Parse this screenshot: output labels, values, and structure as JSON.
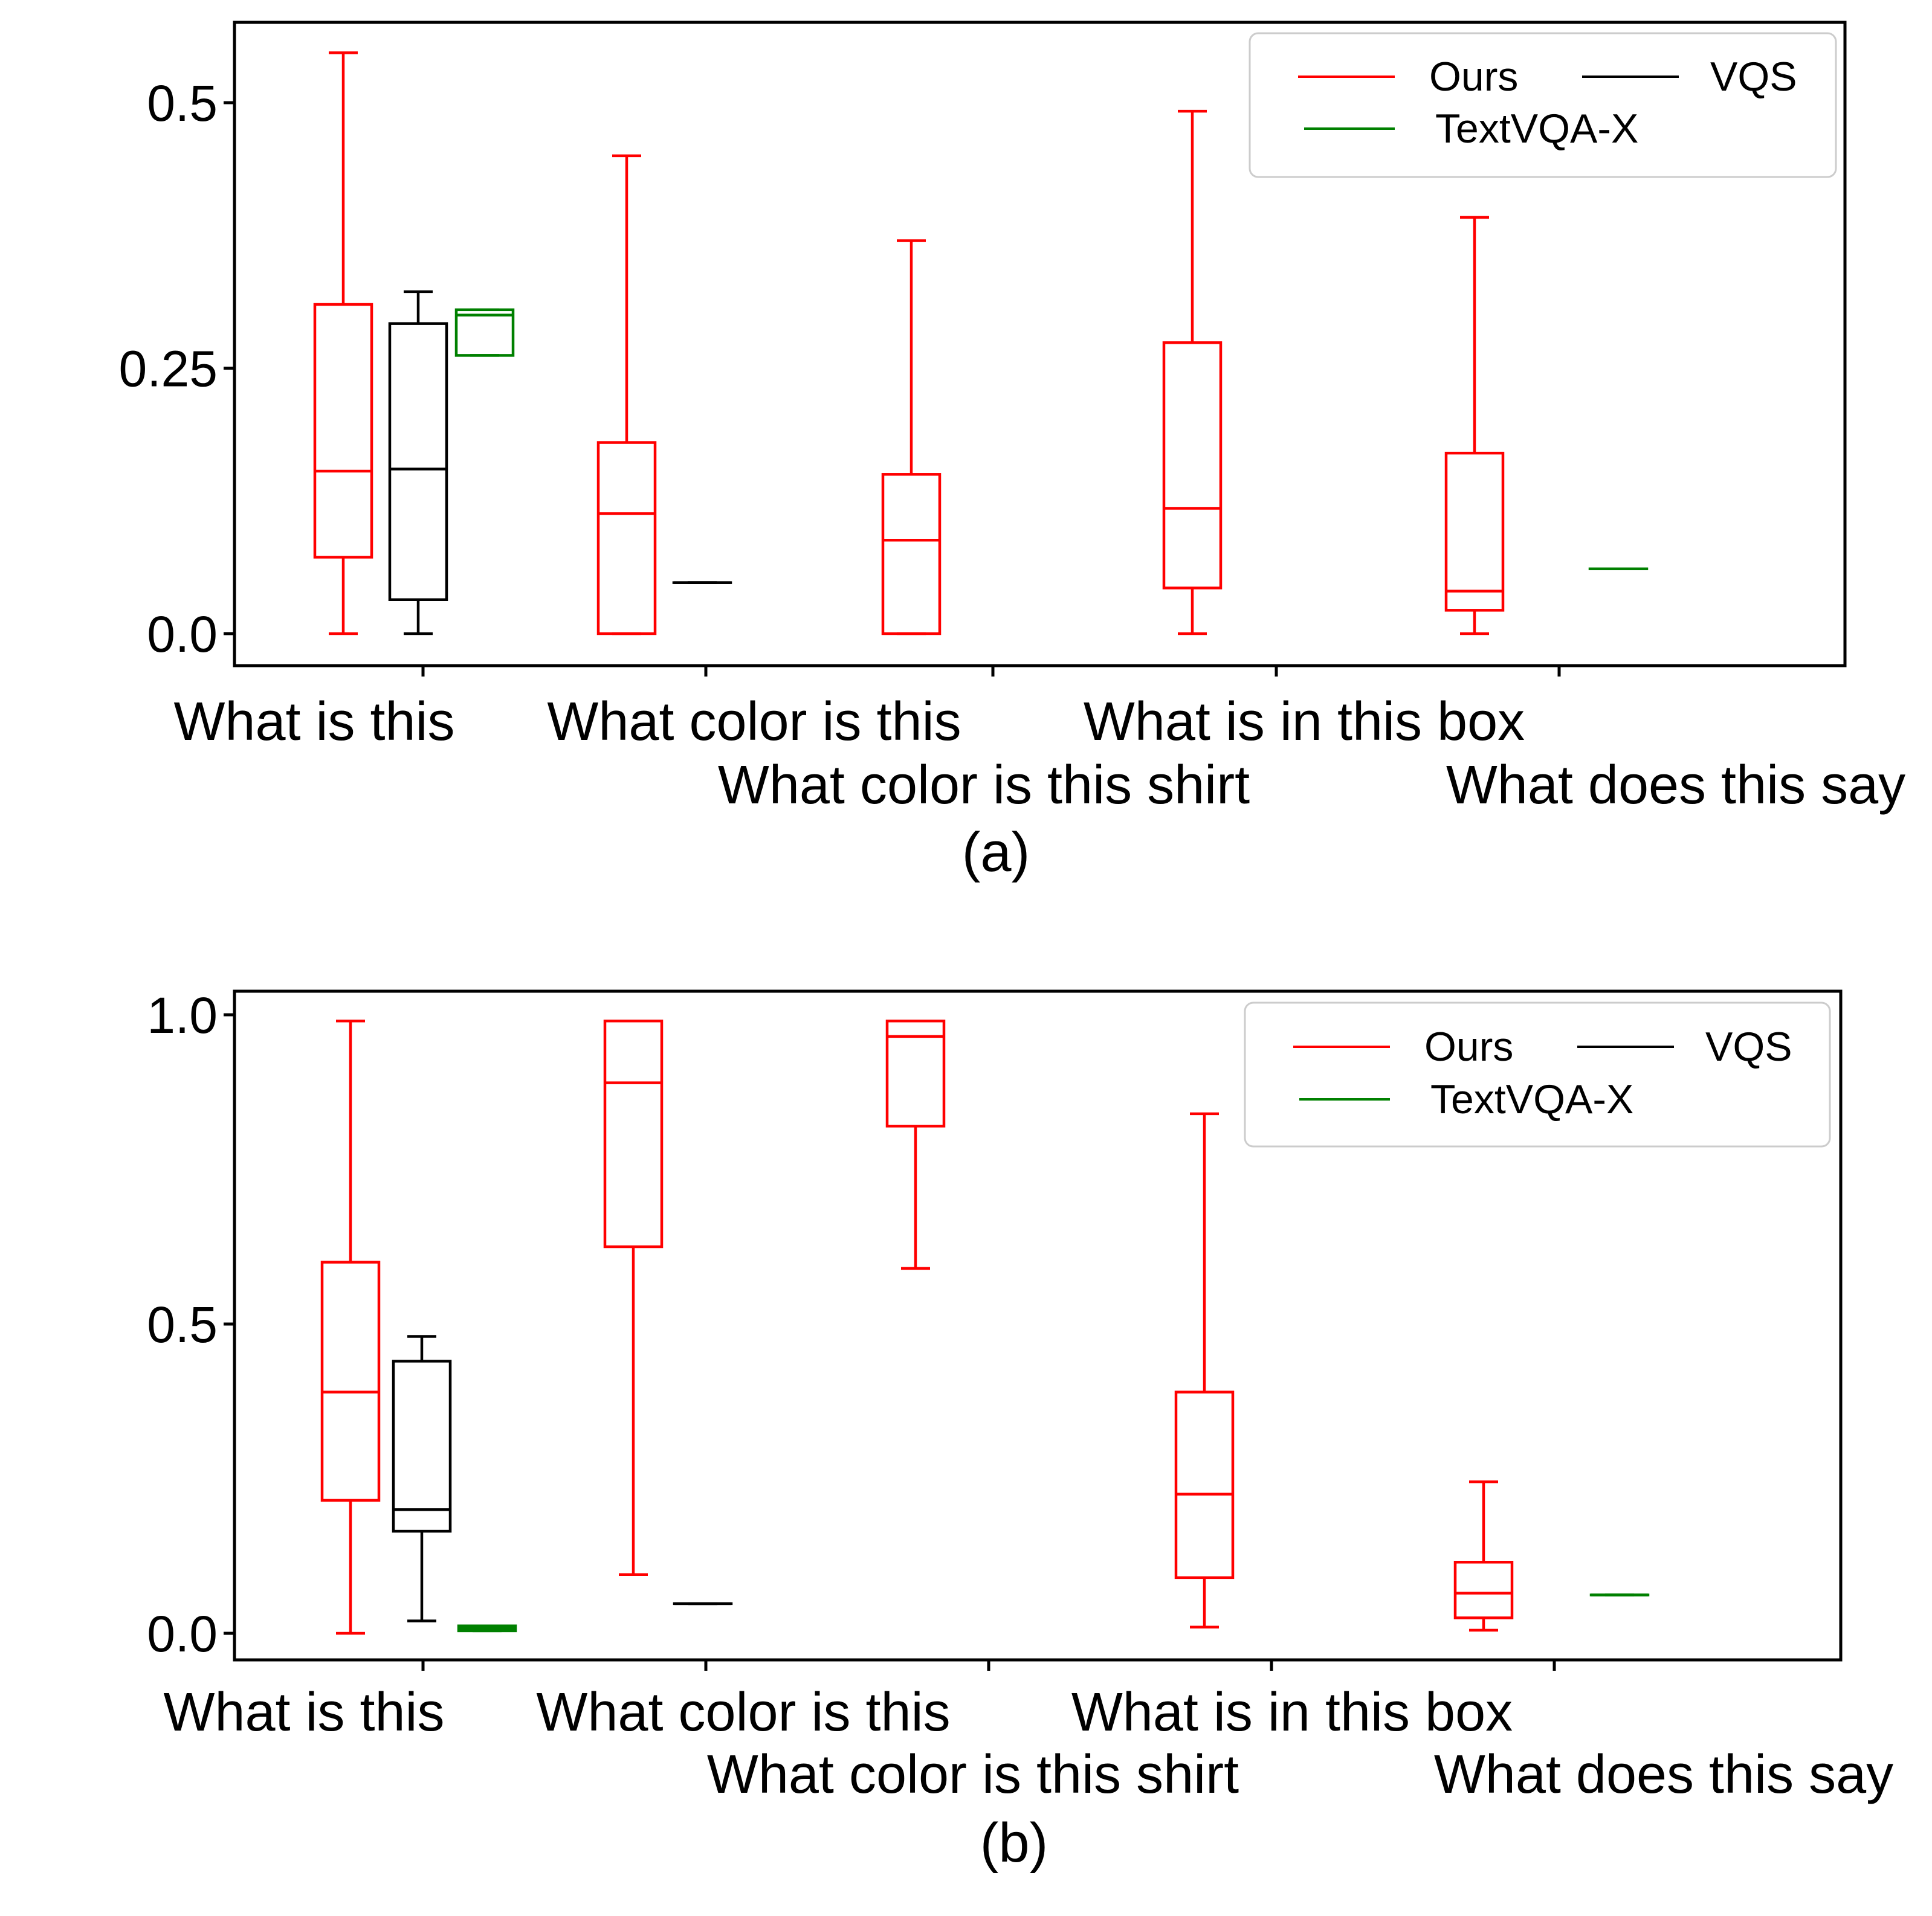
{
  "legend_labels": [
    "Ours",
    "VQS",
    "TextVQA-X"
  ],
  "colors": {
    "Ours": "#ff0000",
    "VQS": "#000000",
    "TextVQA-X": "#008000"
  },
  "chart_data": [
    {
      "type": "box",
      "caption": "(a)",
      "categories": [
        "What is this",
        "What color is this",
        "What color is this shirt",
        "What is in this box",
        "What does this say"
      ],
      "ylim": [
        -0.03,
        0.57
      ],
      "yticks": [
        0.0,
        0.25,
        0.5
      ],
      "ytick_labels": [
        "0.0",
        "0.25",
        "0.5"
      ],
      "legend_position": "top-right",
      "series": [
        {
          "name": "Ours",
          "boxes": [
            {
              "category": 0,
              "whislo": 0.0,
              "q1": 0.072,
              "med": 0.153,
              "q3": 0.31,
              "whishi": 0.547
            },
            {
              "category": 1,
              "whislo": 0.0,
              "q1": 0.0,
              "med": 0.113,
              "q3": 0.18,
              "whishi": 0.45
            },
            {
              "category": 2,
              "whislo": 0.0,
              "q1": 0.0,
              "med": 0.088,
              "q3": 0.15,
              "whishi": 0.37
            },
            {
              "category": 3,
              "whislo": 0.0,
              "q1": 0.043,
              "med": 0.118,
              "q3": 0.274,
              "whishi": 0.492
            },
            {
              "category": 4,
              "whislo": 0.0,
              "q1": 0.022,
              "med": 0.04,
              "q3": 0.17,
              "whishi": 0.392
            }
          ]
        },
        {
          "name": "VQS",
          "boxes": [
            {
              "category": 0,
              "whislo": 0.0,
              "q1": 0.032,
              "med": 0.155,
              "q3": 0.292,
              "whishi": 0.322
            },
            {
              "category": 1,
              "whislo": 0.048,
              "q1": 0.048,
              "med": 0.048,
              "q3": 0.048,
              "whishi": 0.048
            }
          ]
        },
        {
          "name": "TextVQA-X",
          "boxes": [
            {
              "category": 0,
              "whislo": 0.262,
              "q1": 0.262,
              "med": 0.3,
              "q3": 0.305,
              "whishi": 0.305
            },
            {
              "category": 4,
              "whislo": 0.061,
              "q1": 0.061,
              "med": 0.061,
              "q3": 0.061,
              "whishi": 0.061
            }
          ]
        }
      ]
    },
    {
      "type": "box",
      "caption": "(b)",
      "categories": [
        "What is this",
        "What color is this",
        "What color is this shirt",
        "What is in this box",
        "What does this say"
      ],
      "ylim": [
        -0.05,
        1.03
      ],
      "yticks": [
        0.0,
        0.5,
        1.0
      ],
      "ytick_labels": [
        "0.0",
        "0.5",
        "1.0"
      ],
      "legend_position": "top-right",
      "series": [
        {
          "name": "Ours",
          "boxes": [
            {
              "category": 0,
              "whislo": 0.0,
              "q1": 0.215,
              "med": 0.39,
              "q3": 0.6,
              "whishi": 0.99
            },
            {
              "category": 1,
              "whislo": 0.095,
              "q1": 0.625,
              "med": 0.89,
              "q3": 0.99,
              "whishi": 0.99
            },
            {
              "category": 2,
              "whislo": 0.59,
              "q1": 0.82,
              "med": 0.965,
              "q3": 0.99,
              "whishi": 0.99
            },
            {
              "category": 3,
              "whislo": 0.01,
              "q1": 0.09,
              "med": 0.225,
              "q3": 0.39,
              "whishi": 0.84
            },
            {
              "category": 4,
              "whislo": 0.005,
              "q1": 0.025,
              "med": 0.065,
              "q3": 0.115,
              "whishi": 0.245
            }
          ]
        },
        {
          "name": "VQS",
          "boxes": [
            {
              "category": 0,
              "whislo": 0.02,
              "q1": 0.165,
              "med": 0.2,
              "q3": 0.44,
              "whishi": 0.48
            },
            {
              "category": 1,
              "whislo": 0.048,
              "q1": 0.048,
              "med": 0.048,
              "q3": 0.048,
              "whishi": 0.048
            }
          ]
        },
        {
          "name": "TextVQA-X",
          "boxes": [
            {
              "category": 0,
              "whislo": 0.004,
              "q1": 0.004,
              "med": 0.008,
              "q3": 0.012,
              "whishi": 0.012
            },
            {
              "category": 4,
              "whislo": 0.062,
              "q1": 0.062,
              "med": 0.062,
              "q3": 0.062,
              "whishi": 0.062
            }
          ]
        }
      ]
    }
  ]
}
